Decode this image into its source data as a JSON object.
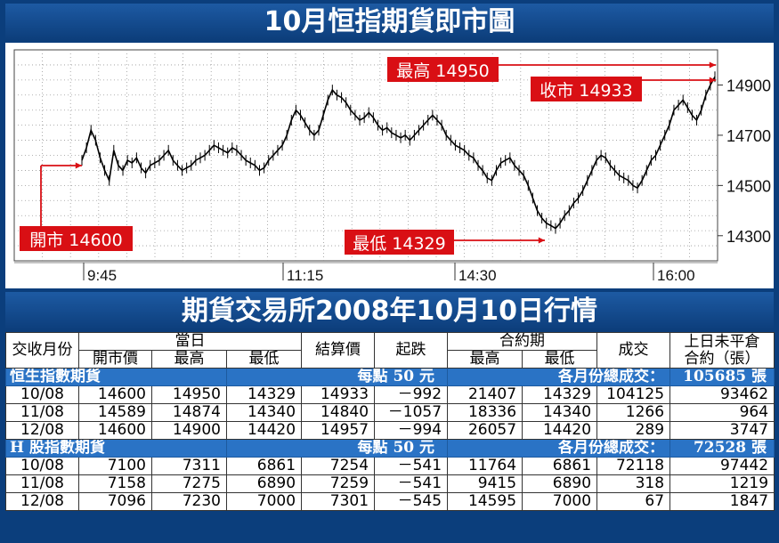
{
  "title": "10月恒指期貨即市圖",
  "table_title": "期貨交易所2008年10月10日行情",
  "chart_data": {
    "type": "line",
    "y_ticks": [
      14300,
      14500,
      14700,
      14900
    ],
    "ylim": [
      14200,
      15040
    ],
    "x_ticks": [
      "9:45",
      "11:15",
      "14:30",
      "16:00"
    ],
    "annotations": {
      "high": "最高 14950",
      "close": "收市 14933",
      "open": "開市 14600",
      "low": "最低 14329"
    },
    "series": [
      {
        "values": [
          14600,
          14650,
          14720,
          14680,
          14610,
          14560,
          14520,
          14640,
          14580,
          14560,
          14600,
          14590,
          14610,
          14570,
          14550,
          14580,
          14590,
          14600,
          14620,
          14640,
          14600,
          14580,
          14560,
          14570,
          14580,
          14600,
          14610,
          14620,
          14640,
          14660,
          14650,
          14640,
          14630,
          14650,
          14640,
          14620,
          14600,
          14590,
          14580,
          14560,
          14570,
          14600,
          14620,
          14640,
          14660,
          14700,
          14760,
          14800,
          14780,
          14750,
          14720,
          14700,
          14720,
          14780,
          14840,
          14880,
          14860,
          14850,
          14830,
          14800,
          14780,
          14760,
          14770,
          14790,
          14770,
          14740,
          14720,
          14730,
          14710,
          14700,
          14690,
          14700,
          14680,
          14700,
          14720,
          14740,
          14760,
          14780,
          14760,
          14740,
          14700,
          14680,
          14660,
          14650,
          14640,
          14620,
          14610,
          14580,
          14560,
          14530,
          14520,
          14560,
          14590,
          14600,
          14610,
          14580,
          14560,
          14540,
          14500,
          14450,
          14400,
          14370,
          14350,
          14340,
          14329,
          14350,
          14380,
          14400,
          14430,
          14450,
          14480,
          14520,
          14560,
          14600,
          14620,
          14610,
          14580,
          14560,
          14540,
          14530,
          14520,
          14500,
          14490,
          14520,
          14560,
          14600,
          14620,
          14660,
          14700,
          14740,
          14800,
          14820,
          14840,
          14810,
          14780,
          14760,
          14800,
          14860,
          14900,
          14933
        ]
      }
    ]
  },
  "table": {
    "headers": {
      "month": "交收月份",
      "today": "當日",
      "open": "開市價",
      "high": "最高",
      "low": "最低",
      "settle": "結算價",
      "change": "起跌",
      "contract": "合約期",
      "c_high": "最高",
      "c_low": "最低",
      "volume": "成交",
      "oi1": "上日未平倉",
      "oi2": "合約（張）"
    },
    "sections": [
      {
        "name": "恒生指數期貨",
        "unit": "每點 50 元",
        "total_label": "各月份總成交：",
        "total": "105685 張",
        "rows": [
          [
            "10/08",
            "14600",
            "14950",
            "14329",
            "14933",
            "－992",
            "21407",
            "14329",
            "104125",
            "93462"
          ],
          [
            "11/08",
            "14589",
            "14874",
            "14340",
            "14840",
            "－1057",
            "18336",
            "14340",
            "1266",
            "964"
          ],
          [
            "12/08",
            "14600",
            "14900",
            "14420",
            "14957",
            "－994",
            "26057",
            "14420",
            "289",
            "3747"
          ]
        ]
      },
      {
        "name": "H 股指數期貨",
        "unit": "每點 50 元",
        "total_label": "各月份總成交：",
        "total": "72528 張",
        "rows": [
          [
            "10/08",
            "7100",
            "7311",
            "6861",
            "7254",
            "－541",
            "11764",
            "6861",
            "72118",
            "97442"
          ],
          [
            "11/08",
            "7158",
            "7275",
            "6890",
            "7259",
            "－541",
            "9415",
            "6890",
            "318",
            "1219"
          ],
          [
            "12/08",
            "7096",
            "7230",
            "7000",
            "7301",
            "－545",
            "14595",
            "7000",
            "67",
            "1847"
          ]
        ]
      }
    ]
  },
  "colors": {
    "banner": "#0c3d7a",
    "section": "#2a73c5",
    "label_red": "#d90f14",
    "line": "#000000"
  }
}
